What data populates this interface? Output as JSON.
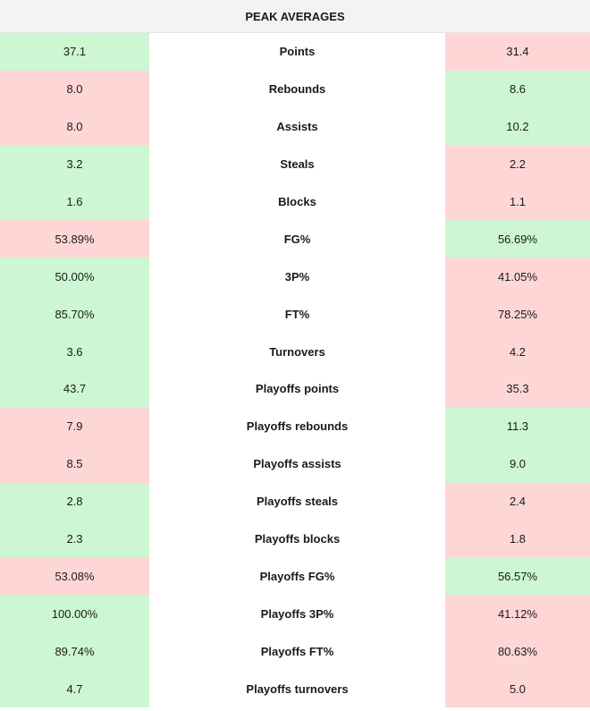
{
  "title": "PEAK AVERAGES",
  "colors": {
    "better": "#ccf7d2",
    "worse": "#ffd6d6",
    "header_bg": "#f3f3f3"
  },
  "rows": [
    {
      "label": "Points",
      "left": "37.1",
      "right": "31.4",
      "left_better": true
    },
    {
      "label": "Rebounds",
      "left": "8.0",
      "right": "8.6",
      "left_better": false
    },
    {
      "label": "Assists",
      "left": "8.0",
      "right": "10.2",
      "left_better": false
    },
    {
      "label": "Steals",
      "left": "3.2",
      "right": "2.2",
      "left_better": true
    },
    {
      "label": "Blocks",
      "left": "1.6",
      "right": "1.1",
      "left_better": true
    },
    {
      "label": "FG%",
      "left": "53.89%",
      "right": "56.69%",
      "left_better": false
    },
    {
      "label": "3P%",
      "left": "50.00%",
      "right": "41.05%",
      "left_better": true
    },
    {
      "label": "FT%",
      "left": "85.70%",
      "right": "78.25%",
      "left_better": true
    },
    {
      "label": "Turnovers",
      "left": "3.6",
      "right": "4.2",
      "left_better": true
    },
    {
      "label": "Playoffs points",
      "left": "43.7",
      "right": "35.3",
      "left_better": true
    },
    {
      "label": "Playoffs rebounds",
      "left": "7.9",
      "right": "11.3",
      "left_better": false
    },
    {
      "label": "Playoffs assists",
      "left": "8.5",
      "right": "9.0",
      "left_better": false
    },
    {
      "label": "Playoffs steals",
      "left": "2.8",
      "right": "2.4",
      "left_better": true
    },
    {
      "label": "Playoffs blocks",
      "left": "2.3",
      "right": "1.8",
      "left_better": true
    },
    {
      "label": "Playoffs FG%",
      "left": "53.08%",
      "right": "56.57%",
      "left_better": false
    },
    {
      "label": "Playoffs 3P%",
      "left": "100.00%",
      "right": "41.12%",
      "left_better": true
    },
    {
      "label": "Playoffs FT%",
      "left": "89.74%",
      "right": "80.63%",
      "left_better": true
    },
    {
      "label": "Playoffs turnovers",
      "left": "4.7",
      "right": "5.0",
      "left_better": true
    }
  ]
}
